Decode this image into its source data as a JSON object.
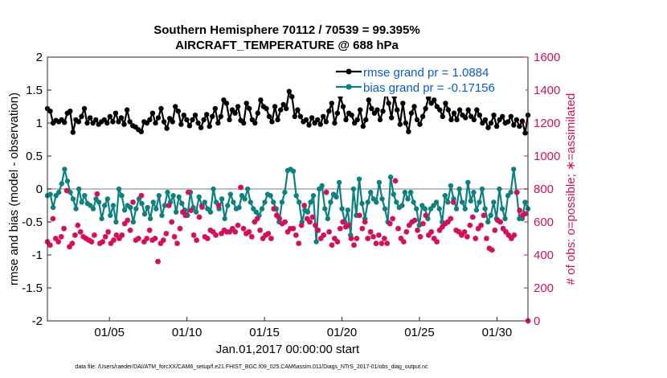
{
  "chart_data": {
    "type": "line",
    "title": "Southern Hemisphere 70112 / 70539 = 99.395%",
    "subtitle": "AIRCRAFT_TEMPERATURE @ 688 hPa",
    "xlabel": "Jan.01,2017 00:00:00 start",
    "ylabel_left": "rmse and bias (model - observation)",
    "ylabel_right": "# of obs: o=possible; ∗=assimilated",
    "footer": "data file: /Users/raeder/DAI/ATM_forcXX/CAM6_setup/f.e21.FHIST_BGC.f09_025.CAM6assim.011/Diags_NTrS_2017-01/obs_diag_output.nc",
    "x_range_days": [
      1,
      32
    ],
    "ylim_left": [
      -2,
      2
    ],
    "ylim_right": [
      0,
      1600
    ],
    "left_ticks": [
      "2",
      "1.5",
      "1",
      "0.5",
      "0",
      "-0.5",
      "-1",
      "-1.5",
      "-2"
    ],
    "right_ticks": [
      "1600",
      "1400",
      "1200",
      "1000",
      "800",
      "600",
      "400",
      "200",
      "0"
    ],
    "x_ticks": [
      {
        "day": 5,
        "label": "01/05"
      },
      {
        "day": 10,
        "label": "01/10"
      },
      {
        "day": 15,
        "label": "01/15"
      },
      {
        "day": 20,
        "label": "01/20"
      },
      {
        "day": 25,
        "label": "01/25"
      },
      {
        "day": 30,
        "label": "01/30"
      }
    ],
    "colors": {
      "rmse": "#000000",
      "bias": "#0f8080",
      "obs": "#d0105a",
      "zero_line": "#bdbdbd"
    },
    "series": [
      {
        "name": "rmse",
        "legend": "rmse grand pr = 1.0884",
        "values": [
          1.22,
          1.18,
          1.0,
          1.04,
          1.02,
          1.05,
          1.01,
          1.15,
          1.18,
          0.86,
          1.05,
          1.02,
          1.1,
          1.22,
          1.0,
          1.08,
          1.0,
          1.05,
          0.98,
          1.02,
          1.05,
          1.0,
          1.1,
          1.02,
          1.15,
          1.02,
          1.08,
          0.98,
          1.2,
          1.02,
          0.96,
          0.94,
          0.9,
          0.87,
          1.02,
          1.0,
          1.05,
          1.15,
          1.0,
          1.08,
          1.22,
          1.02,
          0.92,
          1.07,
          1.02,
          1.25,
          1.18,
          0.98,
          1.12,
          1.05,
          0.96,
          1.05,
          1.12,
          1.0,
          0.93,
          1.05,
          1.13,
          0.95,
          1.1,
          1.22,
          1.0,
          1.1,
          1.35,
          1.3,
          1.05,
          1.2,
          1.15,
          1.25,
          1.04,
          1.0,
          1.3,
          1.22,
          1.05,
          1.0,
          1.15,
          1.35,
          1.25,
          1.22,
          1.1,
          1.02,
          1.25,
          1.05,
          1.2,
          1.28,
          1.22,
          1.48,
          1.4,
          1.1,
          1.2,
          1.1,
          1.02,
          1.05,
          0.97,
          1.08,
          1.0,
          1.05,
          0.98,
          1.1,
          1.02,
          1.18,
          1.3,
          1.0,
          1.15,
          1.4,
          1.25,
          1.05,
          1.15,
          1.12,
          1.0,
          1.05,
          1.2,
          0.95,
          1.05,
          1.35,
          1.22,
          1.15,
          1.2,
          1.05,
          1.18,
          1.48,
          1.3,
          1.08,
          1.4,
          1.2,
          0.98,
          1.3,
          1.0,
          0.87,
          1.15,
          1.25,
          1.05,
          0.98,
          1.1,
          1.22,
          1.38,
          1.3,
          1.35,
          1.25,
          1.2,
          1.1,
          1.3,
          1.2,
          1.05,
          1.15,
          1.05,
          1.2,
          1.12,
          1.08,
          1.2,
          1.1,
          1.05,
          1.2,
          1.12,
          1.0,
          1.05,
          0.93,
          1.0,
          1.12,
          0.95,
          1.05,
          1.1,
          1.0,
          1.02,
          1.1,
          0.97,
          1.05,
          0.95,
          1.03,
          0.85,
          1.12
        ]
      },
      {
        "name": "bias",
        "legend": "bias grand pr = -0.17156",
        "values": [
          -0.1,
          -0.08,
          -0.28,
          -0.1,
          -0.05,
          0.08,
          0.3,
          0.12,
          -0.05,
          -0.15,
          -0.3,
          0.0,
          -0.2,
          -0.1,
          -0.22,
          -0.25,
          -0.3,
          -0.15,
          -0.2,
          -0.45,
          -0.25,
          -0.15,
          -0.4,
          -0.25,
          -0.5,
          0.0,
          -0.1,
          -0.32,
          -0.25,
          -0.28,
          -0.5,
          -0.3,
          -0.15,
          -0.22,
          -0.38,
          -0.28,
          -0.45,
          -0.2,
          -0.3,
          -0.1,
          -0.4,
          -0.25,
          -0.05,
          -0.2,
          -0.1,
          -0.35,
          -0.12,
          -0.22,
          -0.32,
          -0.4,
          -0.05,
          -0.28,
          -0.35,
          -0.12,
          -0.25,
          -0.2,
          -0.3,
          -0.35,
          0.0,
          -0.2,
          -0.3,
          -0.15,
          -0.45,
          -0.25,
          -0.08,
          -0.2,
          -0.3,
          -0.28,
          -0.1,
          -0.15,
          0.0,
          -0.2,
          -0.3,
          -0.35,
          -0.4,
          -0.3,
          -0.2,
          -0.08,
          -0.1,
          -0.2,
          -0.3,
          -0.5,
          -0.2,
          -0.05,
          0.28,
          0.3,
          0.27,
          -0.1,
          -0.2,
          -0.5,
          -0.32,
          -0.35,
          -0.2,
          -0.1,
          -0.8,
          0.0,
          0.05,
          -0.3,
          -0.45,
          -0.2,
          -0.08,
          -0.12,
          0.1,
          -0.3,
          -0.5,
          -0.32,
          -0.7,
          0.0,
          -0.4,
          0.15,
          -0.22,
          -0.45,
          -0.2,
          -0.05,
          -0.15,
          -0.2,
          0.1,
          -0.15,
          -0.3,
          -0.5,
          0.18,
          -0.08,
          -0.2,
          -0.28,
          -0.25,
          -0.05,
          -0.15,
          -0.05,
          -0.2,
          -0.3,
          -0.55,
          -0.25,
          -0.3,
          -0.45,
          -0.3,
          -0.25,
          -0.2,
          -0.3,
          -0.5,
          -0.1,
          -0.2,
          0.05,
          -0.15,
          -0.3,
          0.0,
          -0.2,
          -0.3,
          0.1,
          -0.18,
          -0.05,
          -0.32,
          -0.2,
          0.0,
          -0.3,
          -0.5,
          -0.4,
          -0.2,
          -0.45,
          0.0,
          -0.3,
          -0.45,
          -0.1,
          -0.05,
          0.3,
          -0.05,
          -0.45,
          -0.45,
          -0.2,
          -0.3
        ]
      },
      {
        "name": "obs_assimilated",
        "values": [
          480,
          460,
          620,
          500,
          480,
          510,
          560,
          790,
          450,
          470,
          520,
          580,
          540,
          510,
          500,
          490,
          480,
          520,
          770,
          470,
          480,
          510,
          540,
          470,
          490,
          520,
          500,
          520,
          590,
          610,
          550,
          720,
          490,
          500,
          760,
          480,
          500,
          550,
          490,
          500,
          360,
          470,
          490,
          530,
          700,
          600,
          510,
          470,
          560,
          660,
          640,
          780,
          670,
          520,
          490,
          630,
          690,
          510,
          500,
          550,
          540,
          520,
          700,
          530,
          550,
          540,
          540,
          560,
          540,
          580,
          810,
          560,
          530,
          540,
          510,
          600,
          620,
          550,
          500,
          520,
          530,
          500,
          680,
          640,
          620,
          590,
          600,
          540,
          560,
          560,
          520,
          470,
          580,
          700,
          620,
          600,
          630,
          580,
          550,
          500,
          520,
          780,
          540,
          460,
          500,
          480,
          560,
          600,
          570,
          580,
          500,
          460,
          500,
          640,
          560,
          600,
          500,
          540,
          510,
          470,
          520,
          470,
          500,
          470,
          590,
          620,
          850,
          560,
          500,
          480,
          540,
          580,
          600,
          610,
          550,
          510,
          590,
          640,
          520,
          540,
          500,
          480,
          550,
          570,
          590,
          600,
          620,
          720,
          550,
          540,
          520,
          540,
          510,
          580,
          630,
          500,
          560,
          580,
          640,
          500,
          440,
          430,
          550,
          610,
          600,
          560,
          540,
          520,
          500,
          520,
          780,
          670,
          640,
          650,
          0
        ]
      }
    ]
  }
}
